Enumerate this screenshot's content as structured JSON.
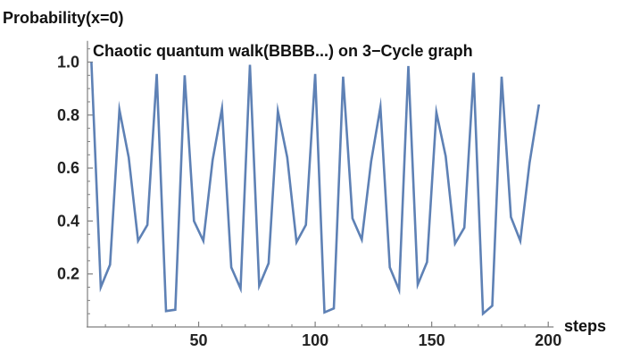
{
  "chart_data": {
    "type": "line",
    "title": "Chaotic quantum walk(BBBB...) on 3−Cycle graph",
    "xlabel": "steps",
    "ylabel": "Probability(x=0)",
    "xlim": [
      0,
      200
    ],
    "ylim": [
      0,
      1.08
    ],
    "x_ticks": [
      50,
      100,
      150,
      200
    ],
    "x_tick_labels": [
      "50",
      "100",
      "150",
      "200"
    ],
    "x_minor_step": 10,
    "y_ticks": [
      0.2,
      0.4,
      0.6,
      0.8,
      1.0
    ],
    "y_tick_labels": [
      "0.2",
      "0.4",
      "0.6",
      "0.8",
      "1.0"
    ],
    "y_minor_step": 0.05,
    "grid": false,
    "color": "#5E81B5",
    "series": [
      {
        "x": [
          4,
          8,
          12,
          16,
          20,
          24,
          28,
          32,
          36,
          40,
          44,
          48,
          52,
          56,
          60,
          64,
          68,
          72,
          76,
          80,
          84,
          88,
          92,
          96,
          100,
          104,
          108,
          112,
          116,
          120,
          124,
          128,
          132,
          136,
          140,
          144,
          148,
          152,
          156,
          160,
          164,
          168,
          172,
          176,
          180,
          184,
          188,
          192,
          196
        ],
        "y": [
          1.0,
          0.15,
          0.235,
          0.82,
          0.64,
          0.325,
          0.385,
          0.955,
          0.06,
          0.065,
          0.95,
          0.4,
          0.325,
          0.63,
          0.825,
          0.225,
          0.145,
          0.99,
          0.155,
          0.24,
          0.815,
          0.64,
          0.32,
          0.385,
          0.955,
          0.055,
          0.07,
          0.945,
          0.41,
          0.33,
          0.625,
          0.83,
          0.225,
          0.14,
          0.985,
          0.16,
          0.245,
          0.81,
          0.645,
          0.315,
          0.375,
          0.96,
          0.05,
          0.08,
          0.945,
          0.415,
          0.325,
          0.62,
          0.84
        ]
      }
    ]
  }
}
